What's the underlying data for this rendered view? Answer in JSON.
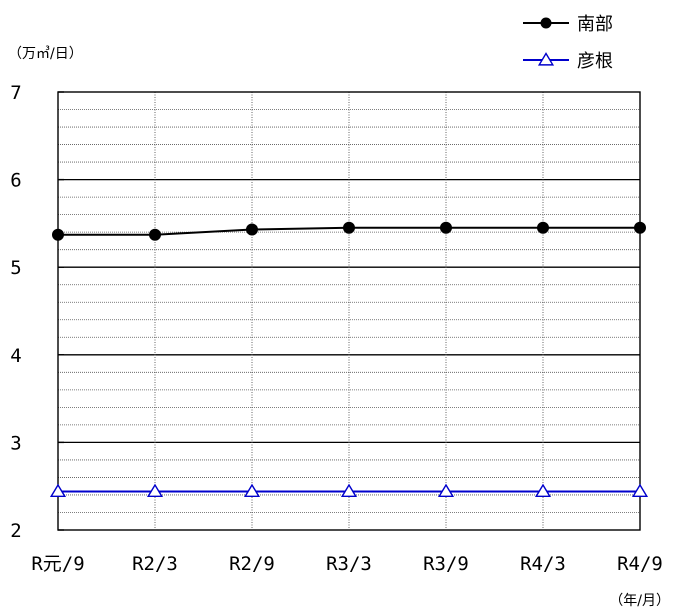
{
  "chart_data": {
    "type": "line",
    "categories": [
      "R元/9",
      "R2/3",
      "R2/9",
      "R3/3",
      "R3/9",
      "R4/3",
      "R4/9"
    ],
    "series": [
      {
        "name": "南部",
        "color": "#000000",
        "marker": "filled-circle",
        "values": [
          5.37,
          5.37,
          5.43,
          5.45,
          5.45,
          5.45,
          5.45
        ]
      },
      {
        "name": "彦根",
        "color": "#0000cc",
        "marker": "open-triangle",
        "values": [
          2.44,
          2.44,
          2.44,
          2.44,
          2.44,
          2.44,
          2.44
        ]
      }
    ],
    "ylim": [
      2,
      7
    ],
    "yticks": [
      "2",
      "3",
      "4",
      "5",
      "6",
      "7"
    ],
    "ylabel": "（万㎥/日）",
    "xlabel": "（年/月）",
    "grid": "major solid, minor dotted",
    "legend_position": "top-right"
  }
}
